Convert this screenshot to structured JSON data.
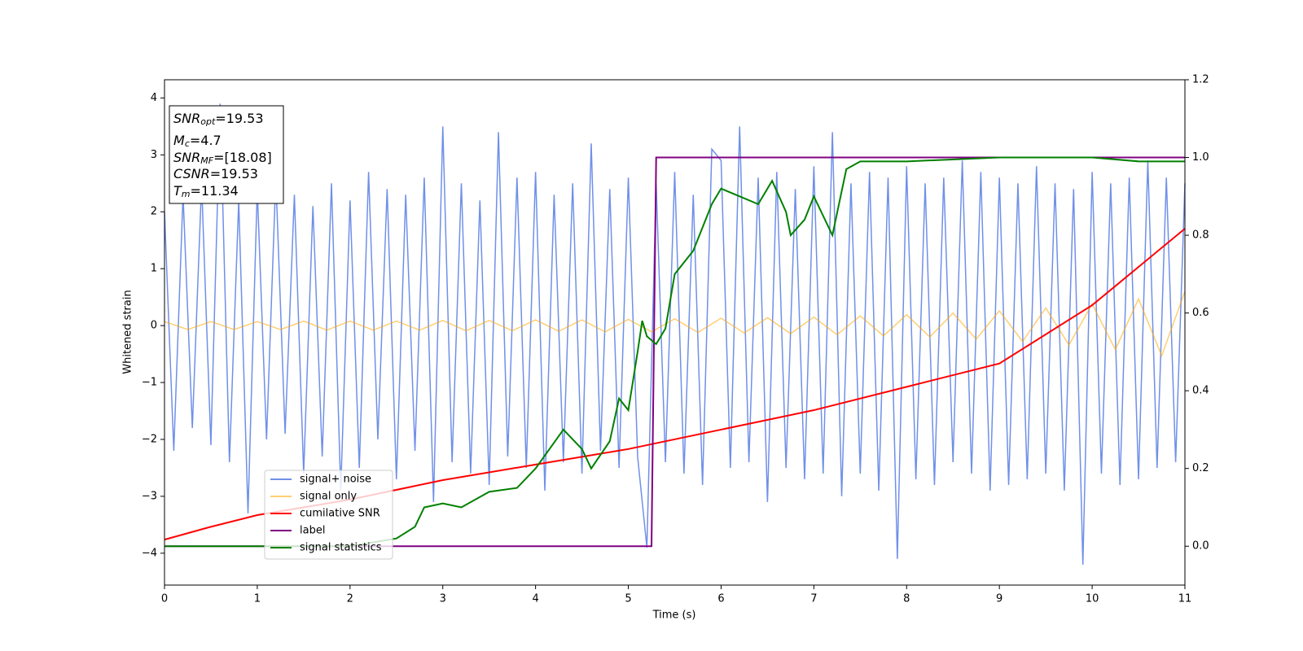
{
  "chart_data": {
    "type": "line",
    "xlabel": "Time (s)",
    "ylabel": "Whitened strain",
    "xlim": [
      0,
      11
    ],
    "ylim": [
      -4.56,
      4.32
    ],
    "y2lim": [
      -0.1,
      1.2
    ],
    "xticks": [
      0,
      1,
      2,
      3,
      4,
      5,
      6,
      7,
      8,
      9,
      10,
      11
    ],
    "yticks": [
      {
        "value": -4,
        "label": "−4"
      },
      {
        "value": -3,
        "label": "−3"
      },
      {
        "value": -2,
        "label": "−2"
      },
      {
        "value": -1,
        "label": "−1"
      },
      0,
      1,
      2,
      3,
      4
    ],
    "y2ticks": [
      {
        "value": 0,
        "label": "0.0"
      },
      0.2,
      0.4,
      0.6,
      0.8,
      {
        "value": 1,
        "label": "1.0"
      },
      1.2
    ],
    "legend": "lower left",
    "annotation": [
      {
        "name": "SNR",
        "sub": "opt",
        "value": "=19.53"
      },
      {
        "name": "M",
        "sub": "c",
        "value": "=4.7"
      },
      {
        "name": "SNR",
        "sub": "MF",
        "value": "=[18.08]"
      },
      {
        "name": "CSNR",
        "value": "=19.53"
      },
      {
        "name": "T",
        "sub": "m",
        "value": "=11.34"
      }
    ],
    "series": [
      {
        "name": "signal+ noise",
        "color": "#7090e8",
        "x": [
          0,
          0.1,
          0.2,
          0.3,
          0.4,
          0.5,
          0.6,
          0.7,
          0.8,
          0.9,
          1,
          1.1,
          1.2,
          1.3,
          1.4,
          1.5,
          1.6,
          1.7,
          1.8,
          1.9,
          2,
          2.1,
          2.2,
          2.3,
          2.4,
          2.5,
          2.6,
          2.7,
          2.8,
          2.9,
          3,
          3.1,
          3.2,
          3.3,
          3.4,
          3.5,
          3.6,
          3.7,
          3.8,
          3.9,
          4,
          4.1,
          4.2,
          4.3,
          4.4,
          4.5,
          4.6,
          4.7,
          4.8,
          4.9,
          5,
          5.1,
          5.2,
          5.3,
          5.4,
          5.5,
          5.6,
          5.7,
          5.8,
          5.9,
          6,
          6.1,
          6.2,
          6.3,
          6.4,
          6.5,
          6.6,
          6.7,
          6.8,
          6.9,
          7,
          7.1,
          7.2,
          7.3,
          7.4,
          7.5,
          7.6,
          7.7,
          7.8,
          7.9,
          8,
          8.1,
          8.2,
          8.3,
          8.4,
          8.5,
          8.6,
          8.7,
          8.8,
          8.9,
          9,
          9.1,
          9.2,
          9.3,
          9.4,
          9.5,
          9.6,
          9.7,
          9.8,
          9.9,
          10,
          10.1,
          10.2,
          10.3,
          10.4,
          10.5,
          10.6,
          10.7,
          10.8,
          10.9,
          11
        ],
        "values": [
          2.0,
          -2.2,
          2.3,
          -1.8,
          2.5,
          -2.1,
          3.9,
          -2.4,
          2.2,
          -3.3,
          2.4,
          -2.0,
          2.6,
          -1.9,
          2.3,
          -2.6,
          2.1,
          -2.3,
          2.5,
          -2.9,
          2.2,
          -2.5,
          2.7,
          -2.0,
          2.4,
          -2.7,
          2.3,
          -2.2,
          2.6,
          -3.1,
          3.5,
          -2.4,
          2.5,
          -2.6,
          2.2,
          -2.8,
          3.4,
          -2.3,
          2.6,
          -2.5,
          2.7,
          -2.9,
          2.3,
          -2.4,
          2.5,
          -2.6,
          3.2,
          -2.2,
          2.4,
          -2.5,
          2.6,
          -2.3,
          -3.9,
          2.5,
          -2.4,
          2.7,
          -2.6,
          2.3,
          -2.8,
          3.1,
          2.9,
          -2.5,
          3.5,
          -2.4,
          2.6,
          -3.1,
          2.7,
          -2.5,
          2.4,
          -2.7,
          2.8,
          -2.6,
          3.4,
          -3.0,
          2.5,
          -2.6,
          2.7,
          -2.9,
          2.6,
          -4.1,
          2.8,
          -2.7,
          2.5,
          -2.8,
          2.6,
          -2.4,
          2.9,
          -2.6,
          2.7,
          -2.9,
          2.6,
          -2.8,
          2.5,
          -2.7,
          2.8,
          -2.6,
          2.5,
          -2.9,
          2.4,
          -4.2,
          2.7,
          -2.6,
          2.5,
          -2.8,
          2.6,
          -2.7,
          2.9,
          -2.5,
          2.6,
          -2.4,
          2.5
        ]
      },
      {
        "name": "signal only",
        "color": "#ffa500",
        "x": [
          0,
          0.25,
          0.5,
          0.75,
          1,
          1.25,
          1.5,
          1.75,
          2,
          2.25,
          2.5,
          2.75,
          3,
          3.25,
          3.5,
          3.75,
          4,
          4.25,
          4.5,
          4.75,
          5,
          5.25,
          5.5,
          5.75,
          6,
          6.25,
          6.5,
          6.75,
          7,
          7.25,
          7.5,
          7.75,
          8,
          8.25,
          8.5,
          8.75,
          9,
          9.25,
          9.5,
          9.75,
          10,
          10.25,
          10.5,
          10.75,
          11
        ],
        "values": [
          0.07,
          -0.07,
          0.07,
          -0.07,
          0.07,
          -0.07,
          0.08,
          -0.08,
          0.08,
          -0.08,
          0.08,
          -0.08,
          0.09,
          -0.09,
          0.09,
          -0.09,
          0.1,
          -0.1,
          0.1,
          -0.11,
          0.11,
          -0.11,
          0.12,
          -0.12,
          0.13,
          -0.13,
          0.14,
          -0.14,
          0.15,
          -0.16,
          0.17,
          -0.18,
          0.19,
          -0.2,
          0.22,
          -0.24,
          0.26,
          -0.28,
          0.31,
          -0.34,
          0.38,
          -0.42,
          0.47,
          -0.53,
          0.6
        ]
      },
      {
        "name": "cumilative SNR",
        "color": "#ff0000",
        "axis": "y2",
        "x": [
          0,
          0.5,
          1,
          2,
          3,
          4,
          5,
          6,
          7,
          8,
          9,
          10,
          11
        ],
        "values": [
          0.017,
          0.05,
          0.08,
          0.12,
          0.17,
          0.21,
          0.25,
          0.3,
          0.35,
          0.41,
          0.47,
          0.62,
          0.817
        ]
      },
      {
        "name": "label",
        "color": "#800080",
        "axis": "y2",
        "x": [
          0,
          5.25,
          5.3,
          11
        ],
        "values": [
          0,
          0,
          1,
          1
        ]
      },
      {
        "name": "signal statistics",
        "color": "#008000",
        "axis": "y2",
        "x": [
          0,
          2,
          2.5,
          2.7,
          2.8,
          3,
          3.2,
          3.5,
          3.8,
          4,
          4.3,
          4.5,
          4.6,
          4.8,
          4.9,
          5,
          5.1,
          5.15,
          5.2,
          5.3,
          5.4,
          5.5,
          5.7,
          5.9,
          6,
          6.2,
          6.4,
          6.55,
          6.7,
          6.75,
          6.9,
          7,
          7.2,
          7.35,
          7.5,
          8,
          9,
          10,
          10.5,
          11
        ],
        "values": [
          0,
          0,
          0.02,
          0.05,
          0.1,
          0.11,
          0.1,
          0.14,
          0.15,
          0.2,
          0.3,
          0.25,
          0.2,
          0.27,
          0.38,
          0.35,
          0.5,
          0.58,
          0.54,
          0.52,
          0.56,
          0.7,
          0.76,
          0.88,
          0.92,
          0.9,
          0.88,
          0.94,
          0.86,
          0.8,
          0.84,
          0.9,
          0.8,
          0.97,
          0.99,
          0.99,
          1,
          1,
          0.99,
          0.99
        ]
      }
    ]
  }
}
